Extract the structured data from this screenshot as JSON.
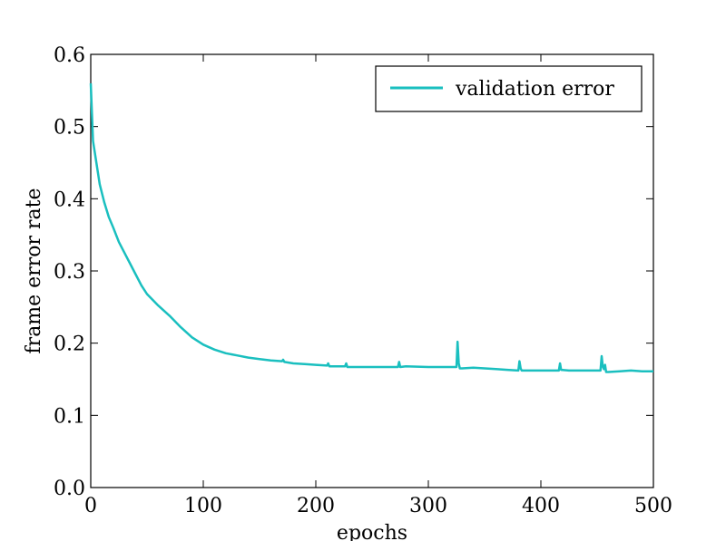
{
  "chart_data": {
    "type": "line",
    "title": "",
    "xlabel": "epochs",
    "ylabel": "frame error rate",
    "xlim": [
      0,
      500
    ],
    "ylim": [
      0.0,
      0.6
    ],
    "xticks": [
      0,
      100,
      200,
      300,
      400,
      500
    ],
    "yticks": [
      0.0,
      0.1,
      0.2,
      0.3,
      0.4,
      0.5,
      0.6
    ],
    "xtick_labels": [
      "0",
      "100",
      "200",
      "300",
      "400",
      "500"
    ],
    "ytick_labels": [
      "0.0",
      "0.1",
      "0.2",
      "0.3",
      "0.4",
      "0.5",
      "0.6"
    ],
    "grid": false,
    "legend_position": "top-right",
    "series": [
      {
        "name": "validation error",
        "color": "#1abfbf",
        "x": [
          0,
          2,
          5,
          8,
          12,
          16,
          20,
          25,
          30,
          35,
          40,
          45,
          50,
          55,
          60,
          70,
          80,
          90,
          100,
          110,
          120,
          130,
          140,
          150,
          160,
          170,
          171,
          172,
          180,
          190,
          200,
          210,
          211,
          212,
          220,
          226,
          227,
          228,
          235,
          250,
          260,
          273,
          274,
          275,
          280,
          300,
          320,
          325,
          326,
          327,
          328,
          330,
          340,
          350,
          360,
          370,
          380,
          381,
          382,
          383,
          390,
          400,
          410,
          416,
          417,
          418,
          425,
          440,
          453,
          454,
          455,
          456,
          457,
          458,
          460,
          470,
          480,
          490,
          500
        ],
        "y": [
          0.56,
          0.48,
          0.45,
          0.42,
          0.395,
          0.375,
          0.36,
          0.34,
          0.325,
          0.31,
          0.295,
          0.28,
          0.268,
          0.26,
          0.252,
          0.238,
          0.222,
          0.208,
          0.198,
          0.191,
          0.186,
          0.183,
          0.18,
          0.178,
          0.176,
          0.175,
          0.177,
          0.174,
          0.172,
          0.171,
          0.17,
          0.169,
          0.172,
          0.168,
          0.168,
          0.168,
          0.172,
          0.167,
          0.167,
          0.167,
          0.167,
          0.167,
          0.174,
          0.167,
          0.168,
          0.167,
          0.167,
          0.167,
          0.202,
          0.172,
          0.165,
          0.165,
          0.166,
          0.165,
          0.164,
          0.163,
          0.162,
          0.175,
          0.165,
          0.162,
          0.162,
          0.162,
          0.162,
          0.162,
          0.172,
          0.163,
          0.162,
          0.162,
          0.162,
          0.182,
          0.168,
          0.164,
          0.17,
          0.16,
          0.16,
          0.161,
          0.162,
          0.161,
          0.161
        ]
      }
    ]
  }
}
